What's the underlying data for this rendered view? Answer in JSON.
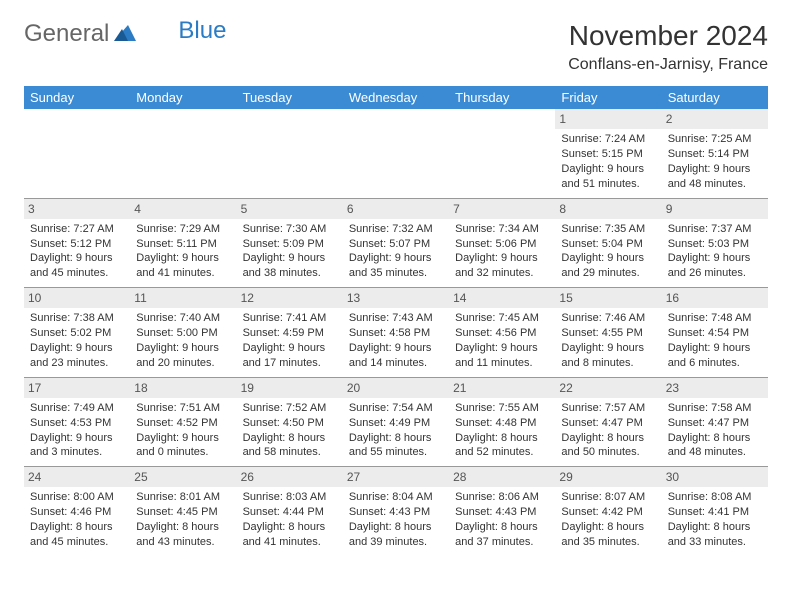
{
  "logo": {
    "part1": "General",
    "part2": "Blue"
  },
  "title": "November 2024",
  "location": "Conflans-en-Jarnisy, France",
  "weekdays": [
    "Sunday",
    "Monday",
    "Tuesday",
    "Wednesday",
    "Thursday",
    "Friday",
    "Saturday"
  ],
  "colors": {
    "header_bg": "#3b8bd4",
    "daynum_bg": "#ececec",
    "text": "#333333",
    "logo_gray": "#666666",
    "logo_blue": "#2b7cc4"
  },
  "weeks": [
    [
      {
        "day": "",
        "sunrise": "",
        "sunset": "",
        "daylight": ""
      },
      {
        "day": "",
        "sunrise": "",
        "sunset": "",
        "daylight": ""
      },
      {
        "day": "",
        "sunrise": "",
        "sunset": "",
        "daylight": ""
      },
      {
        "day": "",
        "sunrise": "",
        "sunset": "",
        "daylight": ""
      },
      {
        "day": "",
        "sunrise": "",
        "sunset": "",
        "daylight": ""
      },
      {
        "day": "1",
        "sunrise": "Sunrise: 7:24 AM",
        "sunset": "Sunset: 5:15 PM",
        "daylight": "Daylight: 9 hours and 51 minutes."
      },
      {
        "day": "2",
        "sunrise": "Sunrise: 7:25 AM",
        "sunset": "Sunset: 5:14 PM",
        "daylight": "Daylight: 9 hours and 48 minutes."
      }
    ],
    [
      {
        "day": "3",
        "sunrise": "Sunrise: 7:27 AM",
        "sunset": "Sunset: 5:12 PM",
        "daylight": "Daylight: 9 hours and 45 minutes."
      },
      {
        "day": "4",
        "sunrise": "Sunrise: 7:29 AM",
        "sunset": "Sunset: 5:11 PM",
        "daylight": "Daylight: 9 hours and 41 minutes."
      },
      {
        "day": "5",
        "sunrise": "Sunrise: 7:30 AM",
        "sunset": "Sunset: 5:09 PM",
        "daylight": "Daylight: 9 hours and 38 minutes."
      },
      {
        "day": "6",
        "sunrise": "Sunrise: 7:32 AM",
        "sunset": "Sunset: 5:07 PM",
        "daylight": "Daylight: 9 hours and 35 minutes."
      },
      {
        "day": "7",
        "sunrise": "Sunrise: 7:34 AM",
        "sunset": "Sunset: 5:06 PM",
        "daylight": "Daylight: 9 hours and 32 minutes."
      },
      {
        "day": "8",
        "sunrise": "Sunrise: 7:35 AM",
        "sunset": "Sunset: 5:04 PM",
        "daylight": "Daylight: 9 hours and 29 minutes."
      },
      {
        "day": "9",
        "sunrise": "Sunrise: 7:37 AM",
        "sunset": "Sunset: 5:03 PM",
        "daylight": "Daylight: 9 hours and 26 minutes."
      }
    ],
    [
      {
        "day": "10",
        "sunrise": "Sunrise: 7:38 AM",
        "sunset": "Sunset: 5:02 PM",
        "daylight": "Daylight: 9 hours and 23 minutes."
      },
      {
        "day": "11",
        "sunrise": "Sunrise: 7:40 AM",
        "sunset": "Sunset: 5:00 PM",
        "daylight": "Daylight: 9 hours and 20 minutes."
      },
      {
        "day": "12",
        "sunrise": "Sunrise: 7:41 AM",
        "sunset": "Sunset: 4:59 PM",
        "daylight": "Daylight: 9 hours and 17 minutes."
      },
      {
        "day": "13",
        "sunrise": "Sunrise: 7:43 AM",
        "sunset": "Sunset: 4:58 PM",
        "daylight": "Daylight: 9 hours and 14 minutes."
      },
      {
        "day": "14",
        "sunrise": "Sunrise: 7:45 AM",
        "sunset": "Sunset: 4:56 PM",
        "daylight": "Daylight: 9 hours and 11 minutes."
      },
      {
        "day": "15",
        "sunrise": "Sunrise: 7:46 AM",
        "sunset": "Sunset: 4:55 PM",
        "daylight": "Daylight: 9 hours and 8 minutes."
      },
      {
        "day": "16",
        "sunrise": "Sunrise: 7:48 AM",
        "sunset": "Sunset: 4:54 PM",
        "daylight": "Daylight: 9 hours and 6 minutes."
      }
    ],
    [
      {
        "day": "17",
        "sunrise": "Sunrise: 7:49 AM",
        "sunset": "Sunset: 4:53 PM",
        "daylight": "Daylight: 9 hours and 3 minutes."
      },
      {
        "day": "18",
        "sunrise": "Sunrise: 7:51 AM",
        "sunset": "Sunset: 4:52 PM",
        "daylight": "Daylight: 9 hours and 0 minutes."
      },
      {
        "day": "19",
        "sunrise": "Sunrise: 7:52 AM",
        "sunset": "Sunset: 4:50 PM",
        "daylight": "Daylight: 8 hours and 58 minutes."
      },
      {
        "day": "20",
        "sunrise": "Sunrise: 7:54 AM",
        "sunset": "Sunset: 4:49 PM",
        "daylight": "Daylight: 8 hours and 55 minutes."
      },
      {
        "day": "21",
        "sunrise": "Sunrise: 7:55 AM",
        "sunset": "Sunset: 4:48 PM",
        "daylight": "Daylight: 8 hours and 52 minutes."
      },
      {
        "day": "22",
        "sunrise": "Sunrise: 7:57 AM",
        "sunset": "Sunset: 4:47 PM",
        "daylight": "Daylight: 8 hours and 50 minutes."
      },
      {
        "day": "23",
        "sunrise": "Sunrise: 7:58 AM",
        "sunset": "Sunset: 4:47 PM",
        "daylight": "Daylight: 8 hours and 48 minutes."
      }
    ],
    [
      {
        "day": "24",
        "sunrise": "Sunrise: 8:00 AM",
        "sunset": "Sunset: 4:46 PM",
        "daylight": "Daylight: 8 hours and 45 minutes."
      },
      {
        "day": "25",
        "sunrise": "Sunrise: 8:01 AM",
        "sunset": "Sunset: 4:45 PM",
        "daylight": "Daylight: 8 hours and 43 minutes."
      },
      {
        "day": "26",
        "sunrise": "Sunrise: 8:03 AM",
        "sunset": "Sunset: 4:44 PM",
        "daylight": "Daylight: 8 hours and 41 minutes."
      },
      {
        "day": "27",
        "sunrise": "Sunrise: 8:04 AM",
        "sunset": "Sunset: 4:43 PM",
        "daylight": "Daylight: 8 hours and 39 minutes."
      },
      {
        "day": "28",
        "sunrise": "Sunrise: 8:06 AM",
        "sunset": "Sunset: 4:43 PM",
        "daylight": "Daylight: 8 hours and 37 minutes."
      },
      {
        "day": "29",
        "sunrise": "Sunrise: 8:07 AM",
        "sunset": "Sunset: 4:42 PM",
        "daylight": "Daylight: 8 hours and 35 minutes."
      },
      {
        "day": "30",
        "sunrise": "Sunrise: 8:08 AM",
        "sunset": "Sunset: 4:41 PM",
        "daylight": "Daylight: 8 hours and 33 minutes."
      }
    ]
  ]
}
